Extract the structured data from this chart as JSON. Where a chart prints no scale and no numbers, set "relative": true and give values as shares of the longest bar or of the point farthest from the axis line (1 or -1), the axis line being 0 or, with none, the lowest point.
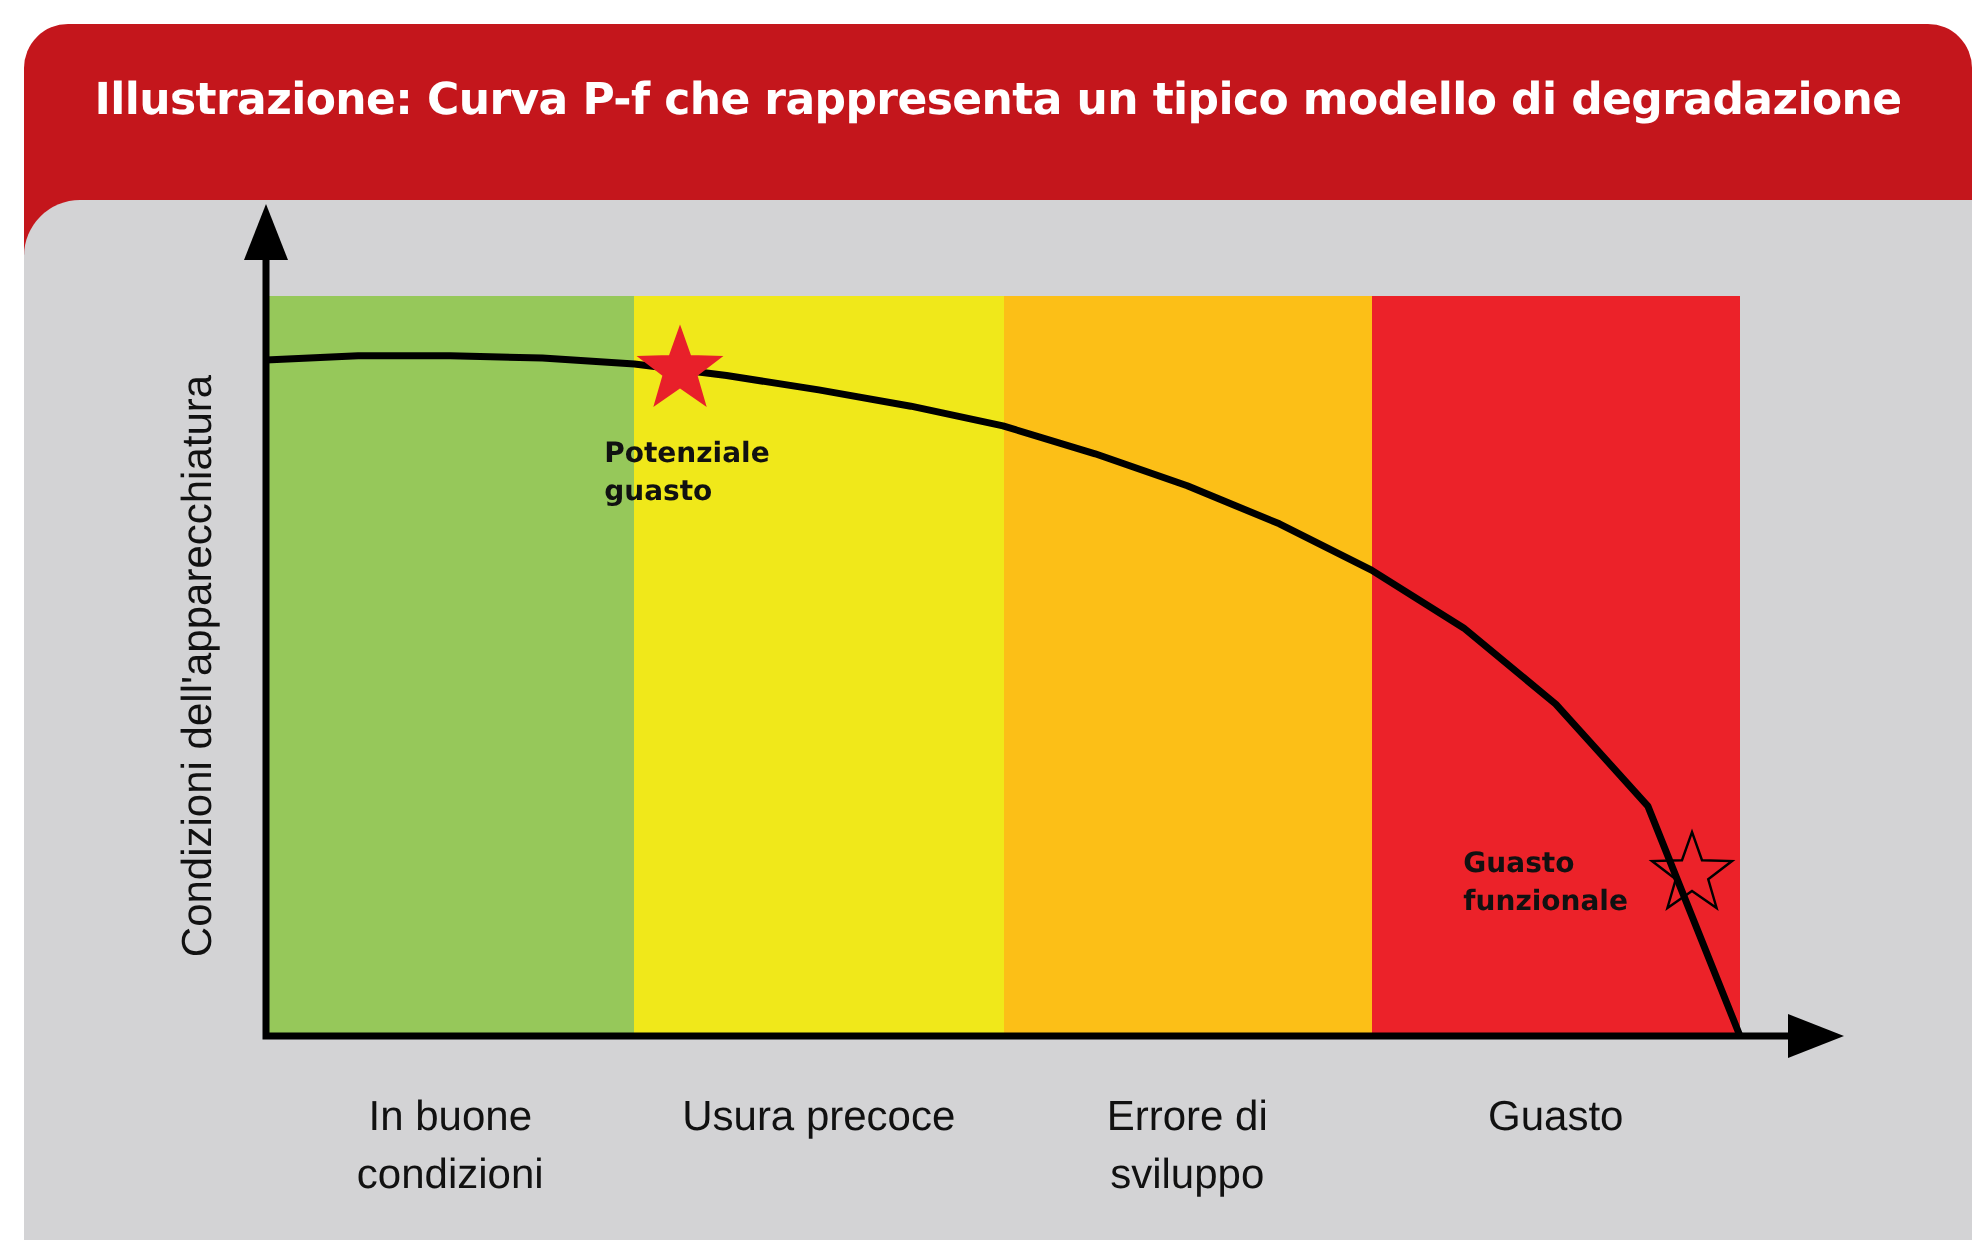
{
  "chart_data": {
    "type": "line",
    "title": "Illustrazione: Curva P-f che rappresenta un tipico modello di degradazione",
    "ylabel": "Condizioni dell'apparecchiatura",
    "relative": true,
    "color": "#000000",
    "marker": "none",
    "categories": [
      null,
      null,
      null,
      null,
      null,
      null,
      null,
      null,
      null,
      null,
      null,
      null,
      null,
      null,
      null,
      null,
      null
    ],
    "values": [
      0.994,
      1,
      1,
      0.997,
      0.988,
      0.971,
      0.95,
      0.926,
      0.897,
      0.856,
      0.809,
      0.753,
      0.685,
      0.6,
      0.488,
      0.338,
      0
    ],
    "annotations": [
      "Potenziale guasto",
      "Guasto funzionale",
      "In buone condizioni",
      "Usura precoce",
      "Errore di sviluppo",
      "Guasto"
    ]
  }
}
